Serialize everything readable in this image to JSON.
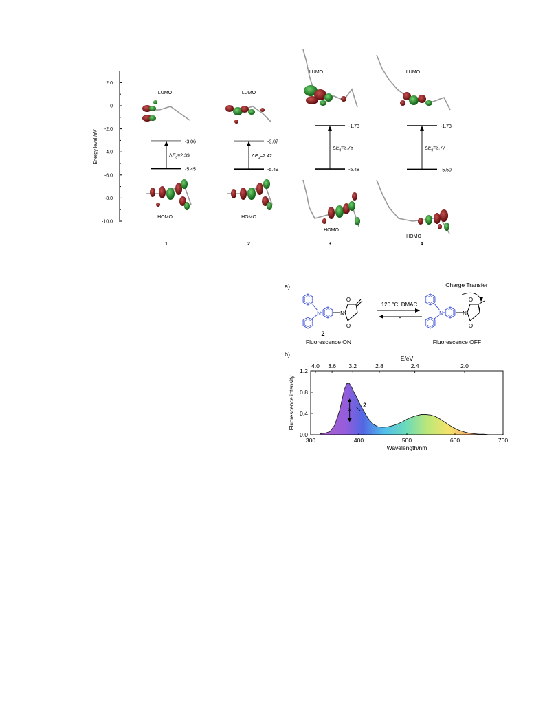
{
  "energy_diagram": {
    "y_axis_label": "Energy level /eV",
    "y_ticks": [
      "2.0",
      "0",
      "-2.0",
      "-4.0",
      "-6.0",
      "-8.0",
      "-10.0"
    ],
    "lumo_label": "LUMO",
    "homo_label": "HOMO",
    "compounds": [
      {
        "id": "1",
        "lumo": -3.06,
        "homo": -5.45,
        "lumo_text": "-3.06",
        "homo_text": "-5.45",
        "gap_text": "=2.39"
      },
      {
        "id": "2",
        "lumo": -3.07,
        "homo": -5.49,
        "lumo_text": "-3.07",
        "homo_text": "-5.49",
        "gap_text": "=2.42"
      },
      {
        "id": "3",
        "lumo": -1.73,
        "homo": -5.48,
        "lumo_text": "-1.73",
        "homo_text": "-5.48",
        "gap_text": "=3.75"
      },
      {
        "id": "4",
        "lumo": -1.73,
        "homo": -5.5,
        "lumo_text": "-1.73",
        "homo_text": "-5.50",
        "gap_text": "=3.77"
      }
    ],
    "gap_delta": "Δ",
    "gap_E": "E",
    "gap_sub": "g"
  },
  "scheme": {
    "panel_label": "a)",
    "conditions": "120 °C, DMAC",
    "charge_transfer": "Charge Transfer",
    "compound_number": "2",
    "left_caption": "Fluorescence ON",
    "right_caption": "Fluorescence OFF",
    "nitrogen": "N",
    "oxygen": "O"
  },
  "spectrum_panel_label": "b)",
  "chart_data": {
    "type": "area",
    "xlabel": "Wavelength/nm",
    "ylabel": "Fluorescence intensity",
    "top_axis_label": "E/eV",
    "xlim": [
      300,
      700
    ],
    "ylim": [
      0,
      1.2
    ],
    "x_ticks": [
      "300",
      "400",
      "500",
      "600",
      "700"
    ],
    "y_ticks": [
      "0.0",
      "0.4",
      "0.8",
      "1.2"
    ],
    "top_ticks": [
      "4.0",
      "3.6",
      "3.2",
      "2.8",
      "2.4",
      "2.0"
    ],
    "series": [
      {
        "name": "2",
        "x": [
          320,
          330,
          340,
          350,
          360,
          365,
          370,
          375,
          380,
          385,
          390,
          395,
          400,
          410,
          420,
          430,
          440,
          450,
          460,
          470,
          480,
          490,
          500,
          510,
          520,
          530,
          540,
          550,
          560,
          570,
          580,
          590,
          600,
          610,
          620,
          630,
          640,
          650,
          660,
          670,
          680,
          690,
          700
        ],
        "y": [
          0.02,
          0.03,
          0.06,
          0.18,
          0.45,
          0.65,
          0.85,
          0.96,
          0.97,
          0.9,
          0.8,
          0.72,
          0.62,
          0.45,
          0.3,
          0.2,
          0.15,
          0.14,
          0.15,
          0.17,
          0.2,
          0.24,
          0.29,
          0.33,
          0.36,
          0.38,
          0.38,
          0.37,
          0.34,
          0.29,
          0.23,
          0.17,
          0.12,
          0.08,
          0.05,
          0.03,
          0.02,
          0.01,
          0.01,
          0.0,
          0.0,
          0.0,
          0.0
        ]
      }
    ]
  }
}
